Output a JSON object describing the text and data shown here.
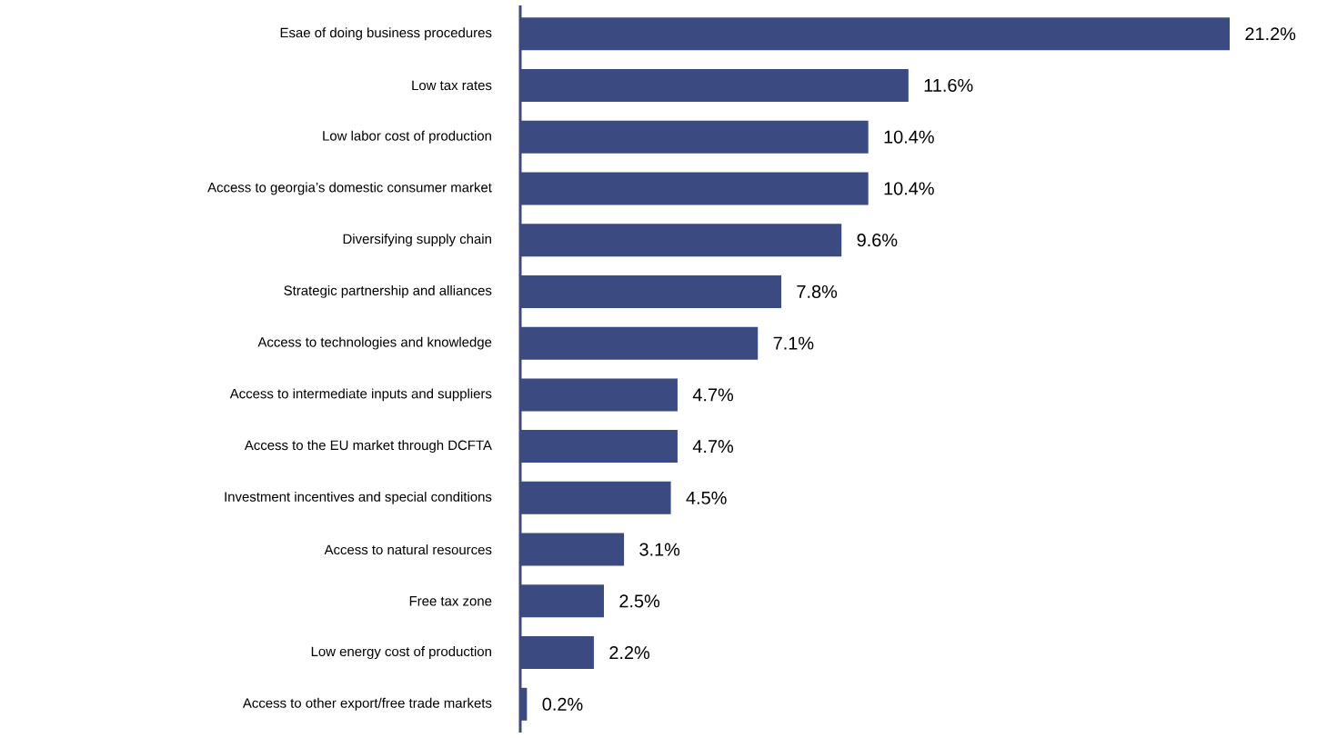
{
  "chart_data": {
    "type": "bar",
    "orientation": "horizontal",
    "color": "#3b4a80",
    "categories": [
      "Esae of doing business procedures",
      "Low tax rates",
      "Low labor cost of production",
      "Access to georgia’s domestic consumer market",
      "Diversifying supply chain",
      "Strategic partnership and alliances",
      "Access to technologies and knowledge",
      "Access to intermediate inputs and suppliers",
      "Access to the EU market through DCFTA",
      "Investment incentives and special conditions",
      "Access to natural resources",
      "Free tax zone",
      "Low energy cost of production",
      "Access to other export/free trade markets"
    ],
    "values": [
      21.2,
      11.6,
      10.4,
      10.4,
      9.6,
      7.8,
      7.1,
      4.7,
      4.7,
      4.5,
      3.1,
      2.5,
      2.2,
      0.2
    ],
    "value_labels": [
      "21.2%",
      "11.6%",
      "10.4%",
      "10.4%",
      "9.6%",
      "7.8%",
      "7.1%",
      "4.7%",
      "4.7%",
      "4.5%",
      "3.1%",
      "2.5%",
      "2.2%",
      "0.2%"
    ]
  }
}
